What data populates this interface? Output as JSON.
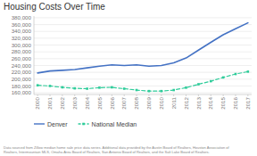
{
  "chart_data": {
    "type": "line",
    "title": "Housing Costs Over Time",
    "x": [
      2000,
      2001,
      2002,
      2003,
      2004,
      2005,
      2006,
      2007,
      2008,
      2009,
      2010,
      2011,
      2012,
      2013,
      2014,
      2015,
      2016,
      2017
    ],
    "series": [
      {
        "name": "Denver",
        "color": "#4472C4",
        "line_style": "solid",
        "values": [
          218000,
          224000,
          226000,
          228000,
          233000,
          238000,
          242000,
          240000,
          242000,
          238000,
          240000,
          248000,
          262000,
          285000,
          308000,
          330000,
          348000,
          365000
        ]
      },
      {
        "name": "National Median",
        "color": "#2ECC9A",
        "line_style": "dashed",
        "marker": "square",
        "values": [
          182000,
          180000,
          176000,
          173000,
          172000,
          175000,
          176000,
          172000,
          168000,
          165000,
          165000,
          168000,
          175000,
          185000,
          194000,
          205000,
          215000,
          222000
        ]
      }
    ],
    "xlim": [
      1999.7,
      2017.3
    ],
    "xticks": [
      2000,
      2001,
      2002,
      2003,
      2004,
      2005,
      2006,
      2007,
      2008,
      2009,
      2010,
      2011,
      2012,
      2013,
      2014,
      2015,
      2016,
      2017
    ],
    "ylim": [
      155000,
      385000
    ],
    "yticks": [
      {
        "value": 160000,
        "label": "160,000"
      },
      {
        "value": 180000,
        "label": "180,000"
      },
      {
        "value": 200000,
        "label": "200,000"
      },
      {
        "value": 220000,
        "label": "220,000"
      },
      {
        "value": 240000,
        "label": "240,000"
      },
      {
        "value": 260000,
        "label": "260,000"
      },
      {
        "value": 280000,
        "label": "280,000"
      },
      {
        "value": 300000,
        "label": "300,000"
      },
      {
        "value": 320000,
        "label": "320,000"
      },
      {
        "value": 340000,
        "label": "340,000"
      },
      {
        "value": 360000,
        "label": "360,000"
      },
      {
        "value": 380000,
        "label": "380,000"
      }
    ],
    "grid": true,
    "legend": "bottom",
    "annotations": [
      "Data sourced from Zillow median home sale price data series. Additional data provided by the Austin Board of Realtors, Houston Association of\nRealtors, Intermountain MLS, Omaha Area Board of Realtors, San Antonio Board of Realtors, and the Salt Lake Board of Realtors."
    ]
  }
}
